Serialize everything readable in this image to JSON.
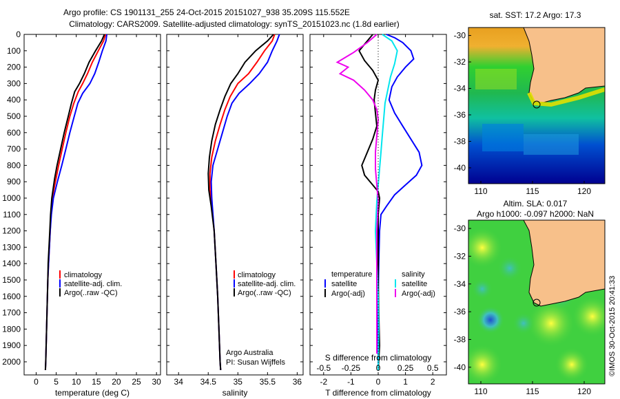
{
  "header": {
    "line1": "Argo profile: CS 1901131_255 24-Oct-2015 20151027_938 35.209S 115.552E",
    "line2": "Climatology: CARS2009. Satellite-adjusted climatology: synTS_20151023.nc (1.8d earlier)"
  },
  "colors": {
    "climatology": "#ff0000",
    "satellite": "#0000ff",
    "argo": "#000000",
    "salinity_satellite": "#00e5ee",
    "salinity_argo": "#ee00ee",
    "land": "#f7c08a"
  },
  "chart_data": [
    {
      "type": "line",
      "panel": "temperature",
      "xlabel": "temperature (deg C)",
      "x_ticks": [
        "0",
        "5",
        "10",
        "15",
        "20",
        "25",
        "30"
      ],
      "y_ticks": [
        "0",
        "100",
        "200",
        "300",
        "400",
        "500",
        "600",
        "700",
        "800",
        "900",
        "1000",
        "1100",
        "1200",
        "1300",
        "1400",
        "1500",
        "1600",
        "1700",
        "1800",
        "1900",
        "2000"
      ],
      "xlim": [
        -3,
        31
      ],
      "ylim": [
        2080,
        0
      ],
      "y_reversed": true,
      "legend": [
        "climatology",
        "satellite-adj. clim.",
        "Argo(..raw -QC)"
      ],
      "series": [
        {
          "name": "climatology",
          "color": "#ff0000",
          "points": [
            [
              17.3,
              0
            ],
            [
              16.8,
              40
            ],
            [
              15.5,
              100
            ],
            [
              14.0,
              170
            ],
            [
              12.8,
              240
            ],
            [
              11.6,
              300
            ],
            [
              10.5,
              350
            ],
            [
              9.4,
              420
            ],
            [
              8.4,
              500
            ],
            [
              7.4,
              600
            ],
            [
              6.5,
              700
            ],
            [
              5.6,
              800
            ],
            [
              4.8,
              900
            ],
            [
              4.0,
              1000
            ],
            [
              3.7,
              1100
            ],
            [
              3.5,
              1200
            ],
            [
              3.3,
              1300
            ],
            [
              3.1,
              1400
            ],
            [
              2.9,
              1500
            ],
            [
              2.8,
              1600
            ],
            [
              2.7,
              1700
            ],
            [
              2.6,
              1800
            ],
            [
              2.5,
              1900
            ],
            [
              2.4,
              2000
            ],
            [
              2.3,
              2050
            ]
          ]
        },
        {
          "name": "satellite-adj. clim.",
          "color": "#0000ff",
          "points": [
            [
              17.6,
              0
            ],
            [
              17.4,
              40
            ],
            [
              16.5,
              100
            ],
            [
              15.6,
              170
            ],
            [
              14.6,
              240
            ],
            [
              13.4,
              300
            ],
            [
              11.6,
              360
            ],
            [
              10.4,
              420
            ],
            [
              9.5,
              500
            ],
            [
              8.4,
              600
            ],
            [
              7.4,
              700
            ],
            [
              6.4,
              800
            ],
            [
              5.3,
              900
            ],
            [
              4.3,
              1000
            ],
            [
              3.8,
              1100
            ],
            [
              3.5,
              1200
            ],
            [
              3.3,
              1300
            ],
            [
              3.1,
              1400
            ],
            [
              2.9,
              1500
            ],
            [
              2.8,
              1600
            ],
            [
              2.7,
              1700
            ],
            [
              2.6,
              1800
            ],
            [
              2.5,
              1900
            ],
            [
              2.4,
              2000
            ],
            [
              2.3,
              2050
            ]
          ]
        },
        {
          "name": "Argo(..raw -QC)",
          "color": "#000000",
          "points": [
            [
              17.0,
              0
            ],
            [
              16.3,
              40
            ],
            [
              14.8,
              100
            ],
            [
              13.2,
              170
            ],
            [
              12.0,
              240
            ],
            [
              10.8,
              300
            ],
            [
              9.6,
              350
            ],
            [
              8.8,
              420
            ],
            [
              8.0,
              500
            ],
            [
              7.0,
              600
            ],
            [
              6.1,
              700
            ],
            [
              5.2,
              800
            ],
            [
              4.6,
              880
            ],
            [
              4.2,
              950
            ],
            [
              3.9,
              1000
            ],
            [
              3.6,
              1100
            ],
            [
              3.4,
              1200
            ],
            [
              3.2,
              1300
            ],
            [
              3.0,
              1400
            ],
            [
              2.9,
              1500
            ],
            [
              2.8,
              1600
            ],
            [
              2.7,
              1700
            ],
            [
              2.6,
              1800
            ],
            [
              2.5,
              1900
            ],
            [
              2.4,
              2000
            ],
            [
              2.3,
              2050
            ]
          ]
        }
      ]
    },
    {
      "type": "line",
      "panel": "salinity",
      "xlabel": "salinity",
      "x_ticks": [
        "34",
        "34.5",
        "35",
        "35.5",
        "36"
      ],
      "xlim": [
        33.8,
        36.1
      ],
      "ylim": [
        2080,
        0
      ],
      "y_reversed": true,
      "legend": [
        "climatology",
        "satellite-adj. clim.",
        "Argo(..raw -QC)"
      ],
      "annotation": [
        "Argo Australia",
        "PI: Susan Wijffels"
      ],
      "series": [
        {
          "name": "climatology",
          "color": "#ff0000",
          "points": [
            [
              35.62,
              0
            ],
            [
              35.58,
              40
            ],
            [
              35.45,
              100
            ],
            [
              35.32,
              170
            ],
            [
              35.18,
              240
            ],
            [
              35.0,
              300
            ],
            [
              34.87,
              380
            ],
            [
              34.78,
              460
            ],
            [
              34.7,
              550
            ],
            [
              34.62,
              650
            ],
            [
              34.56,
              750
            ],
            [
              34.53,
              850
            ],
            [
              34.53,
              950
            ],
            [
              34.56,
              1050
            ],
            [
              34.6,
              1200
            ],
            [
              34.63,
              1400
            ],
            [
              34.66,
              1600
            ],
            [
              34.68,
              1800
            ],
            [
              34.7,
              2000
            ],
            [
              34.71,
              2050
            ]
          ]
        },
        {
          "name": "satellite-adj. clim.",
          "color": "#0000ff",
          "points": [
            [
              35.7,
              0
            ],
            [
              35.66,
              40
            ],
            [
              35.58,
              100
            ],
            [
              35.5,
              170
            ],
            [
              35.36,
              240
            ],
            [
              35.2,
              300
            ],
            [
              35.02,
              360
            ],
            [
              34.9,
              420
            ],
            [
              34.82,
              500
            ],
            [
              34.74,
              600
            ],
            [
              34.66,
              700
            ],
            [
              34.58,
              800
            ],
            [
              34.55,
              900
            ],
            [
              34.56,
              1000
            ],
            [
              34.6,
              1200
            ],
            [
              34.63,
              1400
            ],
            [
              34.66,
              1600
            ],
            [
              34.68,
              1800
            ],
            [
              34.7,
              2000
            ],
            [
              34.71,
              2050
            ]
          ]
        },
        {
          "name": "Argo(..raw -QC)",
          "color": "#000000",
          "points": [
            [
              35.6,
              0
            ],
            [
              35.5,
              40
            ],
            [
              35.3,
              100
            ],
            [
              35.12,
              170
            ],
            [
              35.0,
              240
            ],
            [
              34.88,
              300
            ],
            [
              34.78,
              380
            ],
            [
              34.7,
              460
            ],
            [
              34.62,
              550
            ],
            [
              34.56,
              650
            ],
            [
              34.52,
              750
            ],
            [
              34.5,
              850
            ],
            [
              34.51,
              950
            ],
            [
              34.55,
              1050
            ],
            [
              34.6,
              1200
            ],
            [
              34.63,
              1400
            ],
            [
              34.66,
              1600
            ],
            [
              34.68,
              1800
            ],
            [
              34.7,
              2000
            ],
            [
              34.71,
              2050
            ]
          ]
        }
      ]
    },
    {
      "type": "line",
      "panel": "difference",
      "xlabel_top": "S difference from climatology",
      "xlabel": "T difference from climatology",
      "x_ticks": [
        "-2",
        "-1",
        "0",
        "1",
        "2"
      ],
      "x_ticks_salinity": [
        "-0.5",
        "-0.25",
        "0",
        "0.25",
        "0.5"
      ],
      "xlim": [
        -2.5,
        2.5
      ],
      "ylim": [
        2080,
        0
      ],
      "y_reversed": true,
      "legend_temperature": {
        "title": "temperature",
        "items": [
          "satellite",
          "Argo(-adj)"
        ]
      },
      "legend_salinity": {
        "title": "salinity",
        "items": [
          "satellite",
          "Argo(-adj)"
        ]
      },
      "series": [
        {
          "name": "temperature satellite",
          "color": "#0000ff",
          "points": [
            [
              0.3,
              0
            ],
            [
              0.6,
              20
            ],
            [
              0.9,
              50
            ],
            [
              1.2,
              100
            ],
            [
              1.3,
              150
            ],
            [
              1.0,
              200
            ],
            [
              0.7,
              260
            ],
            [
              0.5,
              320
            ],
            [
              0.4,
              400
            ],
            [
              0.6,
              480
            ],
            [
              0.9,
              560
            ],
            [
              1.2,
              640
            ],
            [
              1.5,
              720
            ],
            [
              1.6,
              800
            ],
            [
              1.4,
              860
            ],
            [
              1.0,
              920
            ],
            [
              0.6,
              980
            ],
            [
              0.3,
              1050
            ],
            [
              0.1,
              1100
            ],
            [
              0.05,
              1200
            ],
            [
              0.02,
              1400
            ],
            [
              0,
              1600
            ],
            [
              0,
              1800
            ],
            [
              0,
              2050
            ]
          ]
        },
        {
          "name": "temperature Argo(-adj)",
          "color": "#000000",
          "points": [
            [
              -0.2,
              0
            ],
            [
              -0.4,
              40
            ],
            [
              -0.7,
              100
            ],
            [
              -0.5,
              160
            ],
            [
              -0.2,
              220
            ],
            [
              0.0,
              280
            ],
            [
              -0.1,
              340
            ],
            [
              -0.15,
              400
            ],
            [
              -0.1,
              480
            ],
            [
              -0.05,
              560
            ],
            [
              -0.2,
              640
            ],
            [
              -0.4,
              720
            ],
            [
              -0.6,
              800
            ],
            [
              -0.5,
              860
            ],
            [
              -0.2,
              920
            ],
            [
              0.0,
              960
            ],
            [
              0.05,
              1000
            ],
            [
              0.0,
              1100
            ],
            [
              0.0,
              1300
            ],
            [
              0.0,
              1500
            ],
            [
              0.02,
              1700
            ],
            [
              0.05,
              1900
            ],
            [
              0.0,
              2050
            ]
          ]
        },
        {
          "name": "salinity satellite",
          "color": "#00e5ee",
          "points": [
            [
              0.15,
              0
            ],
            [
              0.5,
              40
            ],
            [
              0.7,
              100
            ],
            [
              0.6,
              180
            ],
            [
              0.45,
              260
            ],
            [
              0.35,
              340
            ],
            [
              0.25,
              420
            ],
            [
              0.2,
              520
            ],
            [
              0.15,
              620
            ],
            [
              0.1,
              720
            ],
            [
              0.05,
              820
            ],
            [
              0.0,
              920
            ],
            [
              -0.05,
              1020
            ],
            [
              -0.1,
              1200
            ],
            [
              -0.05,
              1400
            ],
            [
              0.0,
              1600
            ],
            [
              0.02,
              1800
            ],
            [
              0.0,
              2050
            ]
          ]
        },
        {
          "name": "salinity Argo(-adj)",
          "color": "#ee00ee",
          "points": [
            [
              -0.05,
              0
            ],
            [
              -0.4,
              50
            ],
            [
              -0.9,
              110
            ],
            [
              -1.5,
              170
            ],
            [
              -1.1,
              200
            ],
            [
              -1.4,
              240
            ],
            [
              -0.9,
              280
            ],
            [
              -0.5,
              340
            ],
            [
              -0.2,
              400
            ],
            [
              -0.05,
              460
            ],
            [
              0.0,
              520
            ],
            [
              -0.05,
              620
            ],
            [
              -0.1,
              720
            ],
            [
              -0.1,
              820
            ],
            [
              -0.05,
              920
            ],
            [
              0.0,
              1020
            ],
            [
              -0.05,
              1200
            ],
            [
              -0.05,
              1400
            ],
            [
              -0.05,
              1600
            ],
            [
              -0.05,
              1800
            ],
            [
              -0.05,
              1950
            ]
          ]
        }
      ]
    }
  ],
  "maps": {
    "sst": {
      "title": "sat. SST: 17.2  Argo: 17.3",
      "x_ticks": [
        "110",
        "115",
        "120"
      ],
      "y_ticks": [
        "-30",
        "-32",
        "-34",
        "-36",
        "-38",
        "-40"
      ]
    },
    "sla": {
      "title_line1": "Altim. SLA: 0.017",
      "title_line2": "Argo h1000: -0.097 h2000: NaN",
      "x_ticks": [
        "110",
        "115",
        "120"
      ],
      "y_ticks": [
        "-30",
        "-32",
        "-34",
        "-36",
        "-38",
        "-40"
      ]
    }
  },
  "footer": {
    "vertical_text": "©IMOS 30-Oct-2015 20:41:33"
  }
}
